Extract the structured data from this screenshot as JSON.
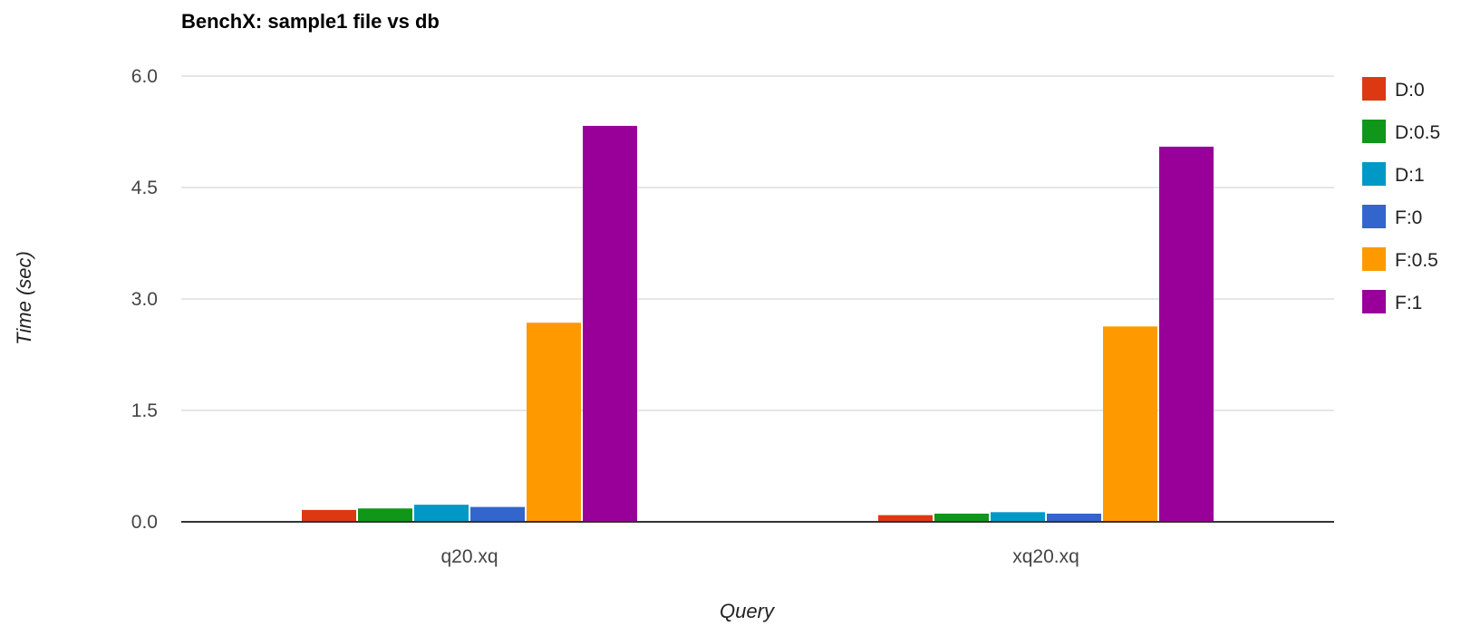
{
  "chart_data": {
    "type": "bar",
    "title": "BenchX: sample1 file vs db",
    "xlabel": "Query",
    "ylabel": "Time (sec)",
    "ylim": [
      0,
      6
    ],
    "yticks": [
      "0.0",
      "1.5",
      "3.0",
      "4.5",
      "6.0"
    ],
    "grid": true,
    "legend_position": "right",
    "categories": [
      "q20.xq",
      "xq20.xq"
    ],
    "series": [
      {
        "name": "D:0",
        "color": "#dc3912",
        "values": [
          0.16,
          0.09
        ]
      },
      {
        "name": "D:0.5",
        "color": "#109618",
        "values": [
          0.18,
          0.11
        ]
      },
      {
        "name": "D:1",
        "color": "#0099c6",
        "values": [
          0.23,
          0.13
        ]
      },
      {
        "name": "F:0",
        "color": "#3366cc",
        "values": [
          0.2,
          0.11
        ]
      },
      {
        "name": "F:0.5",
        "color": "#ff9900",
        "values": [
          2.68,
          2.63
        ]
      },
      {
        "name": "F:1",
        "color": "#990099",
        "values": [
          5.33,
          5.05
        ]
      }
    ]
  }
}
